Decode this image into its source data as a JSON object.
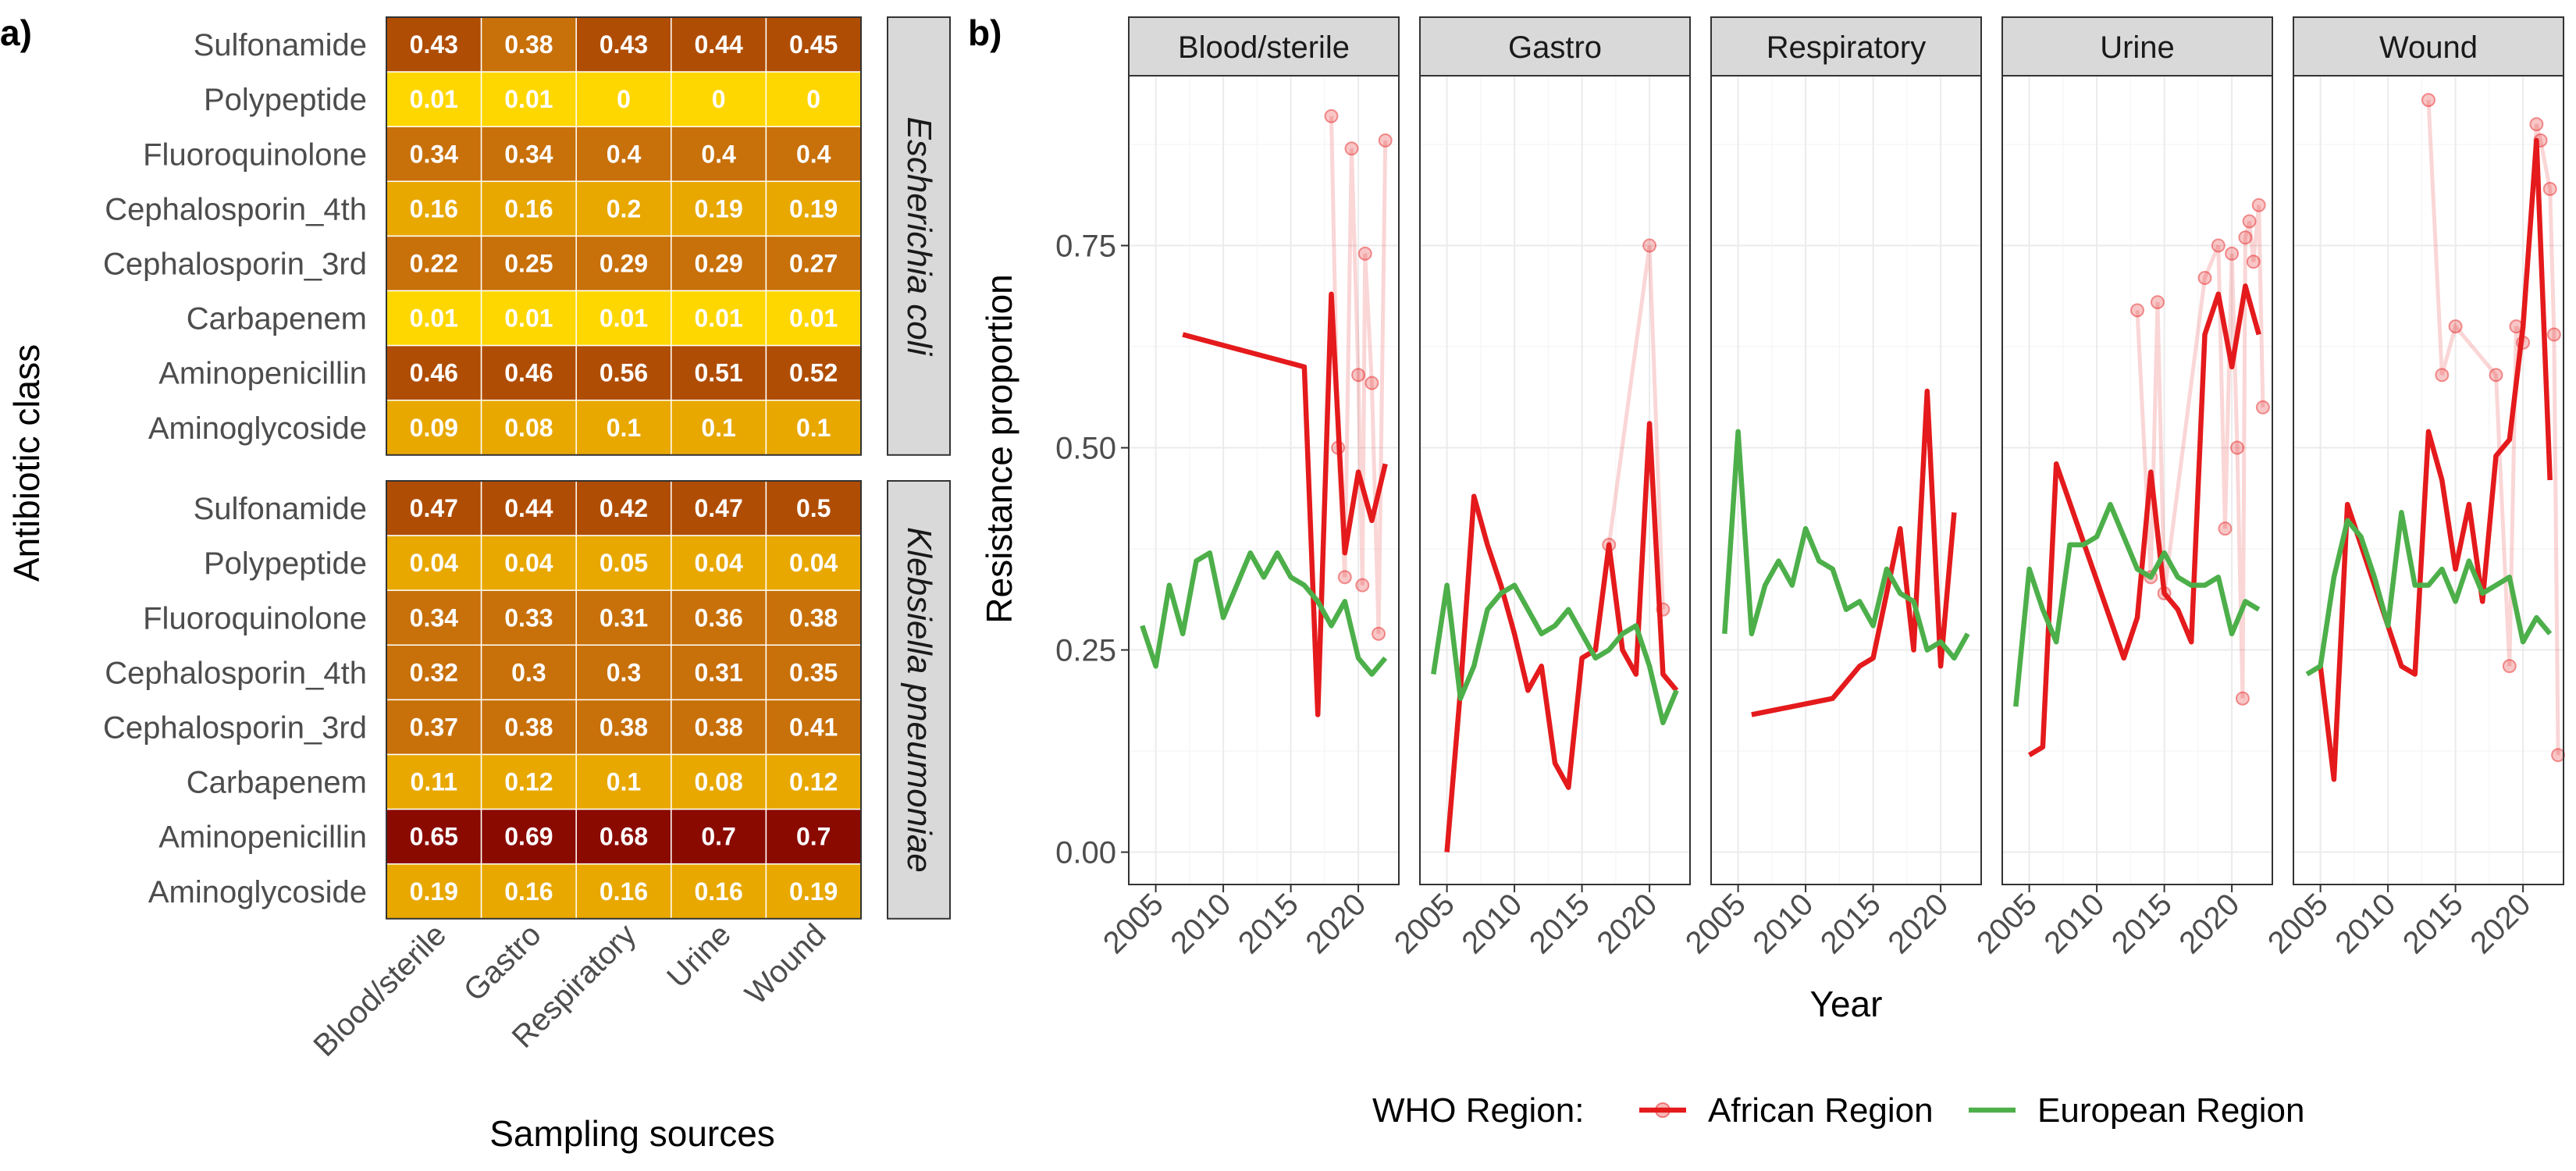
{
  "chart_data": [
    {
      "type": "heatmap",
      "panel_label": "a)",
      "xlabel": "Sampling sources",
      "ylabel": "Antibiotic class",
      "x_categories": [
        "Blood/sterile",
        "Gastro",
        "Respiratory",
        "Urine",
        "Wound"
      ],
      "y_categories": [
        "Sulfonamide",
        "Polypeptide",
        "Fluoroquinolone",
        "Cephalosporin_4th",
        "Cephalosporin_3rd",
        "Carbapenem",
        "Aminopenicillin",
        "Aminoglycoside"
      ],
      "facets": [
        {
          "label": "Escherichia coli",
          "values": [
            [
              "0.43",
              "0.38",
              "0.43",
              "0.44",
              "0.45"
            ],
            [
              "0.01",
              "0.01",
              "0",
              "0",
              "0"
            ],
            [
              "0.34",
              "0.34",
              "0.4",
              "0.4",
              "0.4"
            ],
            [
              "0.16",
              "0.16",
              "0.2",
              "0.19",
              "0.19"
            ],
            [
              "0.22",
              "0.25",
              "0.29",
              "0.29",
              "0.27"
            ],
            [
              "0.01",
              "0.01",
              "0.01",
              "0.01",
              "0.01"
            ],
            [
              "0.46",
              "0.46",
              "0.56",
              "0.51",
              "0.52"
            ],
            [
              "0.09",
              "0.08",
              "0.1",
              "0.1",
              "0.1"
            ]
          ]
        },
        {
          "label": "Klebsiella pneumoniae",
          "values": [
            [
              "0.47",
              "0.44",
              "0.42",
              "0.47",
              "0.5"
            ],
            [
              "0.04",
              "0.04",
              "0.05",
              "0.04",
              "0.04"
            ],
            [
              "0.34",
              "0.33",
              "0.31",
              "0.36",
              "0.38"
            ],
            [
              "0.32",
              "0.3",
              "0.3",
              "0.31",
              "0.35"
            ],
            [
              "0.37",
              "0.38",
              "0.38",
              "0.38",
              "0.41"
            ],
            [
              "0.11",
              "0.12",
              "0.1",
              "0.08",
              "0.12"
            ],
            [
              "0.65",
              "0.69",
              "0.68",
              "0.7",
              "0.7"
            ],
            [
              "0.19",
              "0.16",
              "0.16",
              "0.16",
              "0.19"
            ]
          ]
        }
      ],
      "color_scale": [
        "#ffd700",
        "#e8a800",
        "#c8700a",
        "#b04d04",
        "#8a0a00"
      ]
    },
    {
      "type": "line",
      "panel_label": "b)",
      "xlabel": "Year",
      "ylabel": "Resistance proportion",
      "xlim": [
        2003,
        2023
      ],
      "ylim": [
        -0.04,
        0.96
      ],
      "x_ticks": [
        2005,
        2010,
        2015,
        2020
      ],
      "x_tick_labels": [
        "2005",
        "2010",
        "2015",
        "2020"
      ],
      "y_ticks": [
        0,
        0.25,
        0.5,
        0.75
      ],
      "y_tick_labels": [
        "0.00",
        "0.25",
        "0.50",
        "0.75"
      ],
      "grid": true,
      "legend_title": "WHO Region:",
      "legend_position": "bottom",
      "series_colors": {
        "African Region": "#e41a1c",
        "European Region": "#4daf4a"
      },
      "series_names": [
        "African Region",
        "European Region"
      ],
      "facets": [
        {
          "label": "Blood/sterile",
          "series": [
            {
              "name": "African Region",
              "x": [
                2007,
                2016,
                2017,
                2018,
                2019,
                2020,
                2021,
                2022
              ],
              "y": [
                0.64,
                0.6,
                0.17,
                0.69,
                0.37,
                0.47,
                0.41,
                0.48
              ]
            },
            {
              "name": "European Region",
              "x": [
                2004,
                2005,
                2006,
                2007,
                2008,
                2009,
                2010,
                2011,
                2012,
                2013,
                2014,
                2015,
                2016,
                2017,
                2018,
                2019,
                2020,
                2021,
                2022
              ],
              "y": [
                0.28,
                0.23,
                0.33,
                0.27,
                0.36,
                0.37,
                0.29,
                0.33,
                0.37,
                0.34,
                0.37,
                0.34,
                0.33,
                0.31,
                0.28,
                0.31,
                0.24,
                0.22,
                0.24
              ]
            }
          ],
          "faded_points": [
            {
              "name": "African Region",
              "x": [
                2018,
                2018.5,
                2019,
                2019.5,
                2020,
                2020.3,
                2020.5,
                2021,
                2021.5,
                2022
              ],
              "y": [
                0.91,
                0.5,
                0.34,
                0.87,
                0.59,
                0.33,
                0.74,
                0.58,
                0.27,
                0.88
              ]
            }
          ]
        },
        {
          "label": "Gastro",
          "series": [
            {
              "name": "African Region",
              "x": [
                2005,
                2006,
                2007,
                2008,
                2009,
                2010,
                2011,
                2012,
                2013,
                2014,
                2015,
                2016,
                2017,
                2018,
                2019,
                2020,
                2021,
                2022
              ],
              "y": [
                0.0,
                0.2,
                0.44,
                0.38,
                0.33,
                0.27,
                0.2,
                0.23,
                0.11,
                0.08,
                0.24,
                0.25,
                0.38,
                0.25,
                0.22,
                0.53,
                0.22,
                0.2
              ]
            },
            {
              "name": "European Region",
              "x": [
                2004,
                2005,
                2006,
                2007,
                2008,
                2009,
                2010,
                2011,
                2012,
                2013,
                2014,
                2015,
                2016,
                2017,
                2018,
                2019,
                2020,
                2021,
                2022
              ],
              "y": [
                0.22,
                0.33,
                0.19,
                0.23,
                0.3,
                0.32,
                0.33,
                0.3,
                0.27,
                0.28,
                0.3,
                0.27,
                0.24,
                0.25,
                0.27,
                0.28,
                0.23,
                0.16,
                0.2
              ]
            }
          ],
          "faded_points": [
            {
              "name": "African Region",
              "x": [
                2017,
                2020,
                2021
              ],
              "y": [
                0.38,
                0.75,
                0.3
              ]
            }
          ]
        },
        {
          "label": "Respiratory",
          "series": [
            {
              "name": "African Region",
              "x": [
                2006,
                2012,
                2013,
                2014,
                2015,
                2016,
                2017,
                2018,
                2019,
                2020,
                2021
              ],
              "y": [
                0.17,
                0.19,
                0.21,
                0.23,
                0.24,
                0.32,
                0.4,
                0.25,
                0.57,
                0.23,
                0.42
              ]
            },
            {
              "name": "European Region",
              "x": [
                2004,
                2005,
                2006,
                2007,
                2008,
                2009,
                2010,
                2011,
                2012,
                2013,
                2014,
                2015,
                2016,
                2017,
                2018,
                2019,
                2020,
                2021,
                2022
              ],
              "y": [
                0.27,
                0.52,
                0.27,
                0.33,
                0.36,
                0.33,
                0.4,
                0.36,
                0.35,
                0.3,
                0.31,
                0.28,
                0.35,
                0.32,
                0.31,
                0.25,
                0.26,
                0.24,
                0.27
              ]
            }
          ],
          "faded_points": []
        },
        {
          "label": "Urine",
          "series": [
            {
              "name": "African Region",
              "x": [
                2005,
                2006,
                2007,
                2012,
                2013,
                2014,
                2015,
                2016,
                2017,
                2018,
                2019,
                2020,
                2021,
                2022
              ],
              "y": [
                0.12,
                0.13,
                0.48,
                0.24,
                0.29,
                0.47,
                0.32,
                0.3,
                0.26,
                0.64,
                0.69,
                0.6,
                0.7,
                0.64
              ]
            },
            {
              "name": "European Region",
              "x": [
                2004,
                2005,
                2006,
                2007,
                2008,
                2009,
                2010,
                2011,
                2012,
                2013,
                2014,
                2015,
                2016,
                2017,
                2018,
                2019,
                2020,
                2021,
                2022
              ],
              "y": [
                0.18,
                0.35,
                0.3,
                0.26,
                0.38,
                0.38,
                0.39,
                0.43,
                0.39,
                0.35,
                0.34,
                0.37,
                0.34,
                0.33,
                0.33,
                0.34,
                0.27,
                0.31,
                0.3
              ]
            }
          ],
          "faded_points": [
            {
              "name": "African Region",
              "x": [
                2013,
                2014,
                2014.5,
                2015,
                2018,
                2019,
                2019.5,
                2020,
                2020.4,
                2020.8,
                2021,
                2021.3,
                2021.6,
                2022,
                2022.3
              ],
              "y": [
                0.67,
                0.34,
                0.68,
                0.32,
                0.71,
                0.75,
                0.4,
                0.74,
                0.5,
                0.19,
                0.76,
                0.78,
                0.73,
                0.8,
                0.55
              ]
            }
          ]
        },
        {
          "label": "Wound",
          "series": [
            {
              "name": "African Region",
              "x": [
                2005,
                2006,
                2007,
                2011,
                2012,
                2013,
                2014,
                2015,
                2016,
                2017,
                2018,
                2019,
                2020,
                2021,
                2022
              ],
              "y": [
                0.23,
                0.09,
                0.43,
                0.23,
                0.22,
                0.52,
                0.46,
                0.35,
                0.43,
                0.31,
                0.49,
                0.51,
                0.65,
                0.88,
                0.46
              ]
            },
            {
              "name": "European Region",
              "x": [
                2004,
                2005,
                2006,
                2007,
                2008,
                2009,
                2010,
                2011,
                2012,
                2013,
                2014,
                2015,
                2016,
                2017,
                2018,
                2019,
                2020,
                2021,
                2022
              ],
              "y": [
                0.22,
                0.23,
                0.34,
                0.41,
                0.39,
                0.34,
                0.28,
                0.42,
                0.33,
                0.33,
                0.35,
                0.31,
                0.36,
                0.32,
                0.33,
                0.34,
                0.26,
                0.29,
                0.27
              ]
            }
          ],
          "faded_points": [
            {
              "name": "African Region",
              "x": [
                2013,
                2014,
                2015,
                2018,
                2019,
                2019.5,
                2020,
                2021,
                2021.3,
                2022,
                2022.3,
                2022.6
              ],
              "y": [
                0.93,
                0.59,
                0.65,
                0.59,
                0.23,
                0.65,
                0.63,
                0.9,
                0.88,
                0.82,
                0.64,
                0.12
              ]
            }
          ]
        }
      ]
    }
  ]
}
